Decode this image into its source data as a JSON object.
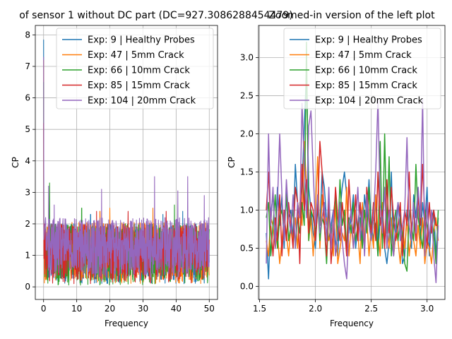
{
  "colors": {
    "series": [
      "#1f77b4",
      "#ff7f0e",
      "#2ca02c",
      "#d62728",
      "#9467bd"
    ],
    "grid": "#b0b0b0",
    "axes": "#000000",
    "background": "#ffffff"
  },
  "legend_labels": [
    "Exp: 9 | Healthy Probes",
    "Exp: 47 | 5mm Crack",
    "Exp: 66 | 10mm Crack",
    "Exp: 85 | 15mm Crack",
    "Exp: 104 | 20mm Crack"
  ],
  "chart_data": [
    {
      "type": "line",
      "title": "of sensor 1 without DC part (DC=927.3086288454479)",
      "xlabel": "Frequency",
      "ylabel": "CP",
      "xlim": [
        -2.5,
        52.5
      ],
      "ylim": [
        -0.4,
        8.3
      ],
      "xticks": [
        0,
        10,
        20,
        30,
        40,
        50
      ],
      "xtick_labels": [
        "0",
        "10",
        "20",
        "30",
        "40",
        "50"
      ],
      "yticks": [
        0,
        1,
        2,
        3,
        4,
        5,
        6,
        7,
        8
      ],
      "ytick_labels": [
        "0",
        "1",
        "2",
        "3",
        "4",
        "5",
        "6",
        "7",
        "8"
      ],
      "grid": true,
      "legend_position": "top-right",
      "x_range": [
        0,
        50
      ],
      "series": [
        {
          "name": "Exp: 9 | Healthy Probes",
          "head": [
            [
              0,
              7.85
            ],
            [
              0.05,
              3.5
            ],
            [
              0.1,
              1.2
            ]
          ],
          "band": [
            0.1,
            2.0
          ],
          "peaks": [
            [
              14.2,
              2.3
            ],
            [
              36.0,
              2.3
            ],
            [
              42.0,
              2.4
            ]
          ]
        },
        {
          "name": "Exp: 47 | 5mm Crack",
          "head": [
            [
              0,
              7.2
            ],
            [
              0.05,
              3.0
            ],
            [
              0.1,
              1.0
            ]
          ],
          "band": [
            0.1,
            2.05
          ],
          "peaks": [
            [
              17.0,
              2.4
            ],
            [
              20.0,
              2.5
            ],
            [
              33.0,
              2.5
            ]
          ]
        },
        {
          "name": "Exp: 66 | 10mm Crack",
          "head": [
            [
              0,
              6.5
            ],
            [
              0.05,
              2.5
            ],
            [
              0.1,
              1.0
            ]
          ],
          "band": [
            0.05,
            2.0
          ],
          "peaks": [
            [
              1.8,
              3.3
            ],
            [
              11.5,
              2.5
            ],
            [
              39.5,
              2.6
            ]
          ]
        },
        {
          "name": "Exp: 85 | 15mm Crack",
          "head": [
            [
              0,
              5.2
            ],
            [
              0.05,
              2.0
            ],
            [
              0.1,
              0.9
            ]
          ],
          "band": [
            0.1,
            2.0
          ],
          "peaks": [
            [
              16.0,
              2.4
            ],
            [
              25.5,
              2.4
            ],
            [
              37.0,
              2.4
            ]
          ]
        },
        {
          "name": "Exp: 104 | 20mm Crack",
          "head": [
            [
              0,
              7.3
            ],
            [
              0.05,
              4.2
            ],
            [
              0.1,
              1.5
            ],
            [
              0.6,
              2.2
            ]
          ],
          "band": [
            0.3,
            2.2
          ],
          "peaks": [
            [
              1.5,
              3.2
            ],
            [
              3.2,
              2.6
            ],
            [
              17.5,
              3.1
            ],
            [
              33.5,
              3.5
            ],
            [
              40.5,
              3.05
            ],
            [
              43.5,
              3.5
            ],
            [
              48.5,
              2.9
            ]
          ]
        }
      ]
    },
    {
      "type": "line",
      "title": "Zoomed-in version of the left plot",
      "xlabel": "Frequency",
      "ylabel": "CP",
      "xlim": [
        1.49,
        3.16
      ],
      "ylim": [
        -0.17,
        3.42
      ],
      "xticks": [
        1.5,
        2.0,
        2.5,
        3.0
      ],
      "xtick_labels": [
        "1.5",
        "2.0",
        "2.5",
        "3.0"
      ],
      "yticks": [
        0.0,
        0.5,
        1.0,
        1.5,
        2.0,
        2.5,
        3.0
      ],
      "ytick_labels": [
        "0.0",
        "0.5",
        "1.0",
        "1.5",
        "2.0",
        "2.5",
        "3.0"
      ],
      "grid": true,
      "legend_position": "top-right",
      "x": [
        1.56,
        1.58,
        1.6,
        1.62,
        1.64,
        1.66,
        1.68,
        1.7,
        1.72,
        1.74,
        1.76,
        1.78,
        1.8,
        1.82,
        1.84,
        1.86,
        1.88,
        1.9,
        1.92,
        1.94,
        1.96,
        1.98,
        2.0,
        2.02,
        2.04,
        2.06,
        2.08,
        2.1,
        2.12,
        2.14,
        2.16,
        2.18,
        2.2,
        2.22,
        2.24,
        2.26,
        2.28,
        2.3,
        2.32,
        2.34,
        2.36,
        2.38,
        2.4,
        2.42,
        2.44,
        2.46,
        2.48,
        2.5,
        2.52,
        2.54,
        2.56,
        2.58,
        2.6,
        2.62,
        2.64,
        2.66,
        2.68,
        2.7,
        2.72,
        2.74,
        2.76,
        2.78,
        2.8,
        2.82,
        2.84,
        2.86,
        2.88,
        2.9,
        2.92,
        2.94,
        2.96,
        2.98,
        3.0,
        3.02,
        3.04,
        3.06,
        3.08,
        3.1
      ],
      "series": [
        {
          "name": "Exp: 9 | Healthy Probes",
          "values": [
            0.7,
            0.1,
            0.95,
            1.2,
            0.6,
            1.3,
            0.8,
            1.2,
            0.5,
            1.3,
            0.9,
            1.0,
            0.6,
            1.6,
            1.1,
            0.9,
            1.3,
            2.1,
            2.8,
            1.3,
            1.0,
            0.7,
            0.5,
            1.1,
            0.8,
            1.5,
            1.3,
            0.85,
            0.6,
            0.8,
            1.0,
            0.6,
            0.4,
            1.0,
            1.3,
            1.5,
            1.2,
            0.7,
            0.9,
            1.2,
            0.5,
            0.8,
            1.1,
            0.6,
            1.2,
            0.9,
            1.4,
            0.8,
            0.6,
            1.2,
            0.4,
            0.9,
            0.9,
            0.5,
            0.3,
            0.6,
            1.5,
            0.4,
            0.7,
            1.1,
            0.9,
            0.3,
            0.4,
            1.0,
            0.8,
            0.5,
            1.2,
            0.9,
            1.3,
            0.6,
            1.1,
            0.8,
            1.3,
            0.4,
            0.9,
            1.0,
            0.4,
            0.9
          ]
        },
        {
          "name": "Exp: 47 | 5mm Crack",
          "values": [
            0.6,
            0.4,
            0.9,
            0.8,
            0.5,
            0.7,
            0.3,
            0.6,
            0.9,
            0.7,
            0.4,
            0.8,
            0.6,
            0.9,
            0.5,
            1.1,
            0.8,
            1.9,
            1.3,
            0.6,
            0.9,
            0.4,
            1.0,
            1.7,
            0.5,
            1.2,
            0.8,
            0.9,
            0.6,
            0.7,
            0.4,
            1.1,
            0.3,
            0.5,
            0.7,
            0.6,
            1.3,
            0.4,
            0.8,
            0.5,
            1.0,
            0.7,
            0.3,
            1.1,
            0.6,
            0.9,
            0.4,
            0.8,
            0.5,
            1.2,
            0.7,
            0.4,
            1.1,
            0.6,
            0.8,
            0.5,
            0.9,
            0.4,
            0.7,
            0.6,
            0.3,
            0.8,
            0.5,
            0.9,
            0.4,
            0.7,
            0.6,
            0.4,
            0.8,
            0.5,
            0.9,
            0.3,
            0.6,
            0.5,
            0.3,
            0.7,
            0.9,
            0.6
          ]
        },
        {
          "name": "Exp: 66 | 10mm Crack",
          "values": [
            0.9,
            1.1,
            0.4,
            0.8,
            1.2,
            0.5,
            0.9,
            1.0,
            0.7,
            1.2,
            0.6,
            0.8,
            1.0,
            0.5,
            0.9,
            0.7,
            1.1,
            0.8,
            3.2,
            0.6,
            1.0,
            0.9,
            0.7,
            1.1,
            0.6,
            0.9,
            0.8,
            0.3,
            1.0,
            0.7,
            0.9,
            1.2,
            0.6,
            1.4,
            0.8,
            1.0,
            0.5,
            0.9,
            0.7,
            1.1,
            0.6,
            0.8,
            0.9,
            0.5,
            1.0,
            0.7,
            1.3,
            0.6,
            0.9,
            0.8,
            0.4,
            1.9,
            0.5,
            2.0,
            0.7,
            1.7,
            0.4,
            0.8,
            1.0,
            0.6,
            0.9,
            0.7,
            0.3,
            0.2,
            1.0,
            0.8,
            0.6,
            1.6,
            0.9,
            0.7,
            0.5,
            1.0,
            0.8,
            0.6,
            0.9,
            0.7,
            0.3,
            1.0
          ]
        },
        {
          "name": "Exp: 85 | 15mm Crack",
          "values": [
            1.0,
            1.5,
            0.8,
            0.4,
            0.9,
            0.6,
            1.2,
            0.4,
            1.0,
            0.6,
            1.1,
            0.8,
            0.5,
            1.3,
            1.1,
            0.3,
            1.6,
            1.0,
            1.4,
            0.7,
            1.1,
            1.0,
            0.6,
            1.0,
            1.9,
            1.5,
            0.8,
            0.4,
            1.2,
            0.3,
            0.7,
            1.3,
            0.9,
            0.6,
            1.1,
            0.8,
            0.4,
            1.4,
            0.9,
            0.7,
            1.2,
            0.6,
            1.1,
            0.8,
            0.5,
            1.3,
            0.9,
            0.7,
            1.1,
            0.6,
            1.5,
            0.8,
            1.0,
            0.5,
            1.4,
            0.7,
            1.3,
            0.9,
            0.6,
            0.8,
            1.1,
            0.4,
            1.0,
            0.8,
            1.5,
            0.7,
            1.0,
            0.6,
            1.2,
            0.8,
            1.6,
            0.9,
            0.5,
            1.1,
            0.7,
            1.0,
            0.8,
            0.8
          ]
        },
        {
          "name": "Exp: 104 | 20mm Crack",
          "values": [
            0.3,
            2.0,
            0.8,
            1.3,
            0.5,
            1.1,
            2.0,
            1.2,
            0.6,
            1.4,
            0.9,
            0.7,
            1.2,
            0.5,
            1.1,
            0.9,
            2.4,
            1.6,
            0.9,
            2.1,
            2.3,
            1.5,
            0.8,
            1.2,
            0.7,
            0.9,
            1.1,
            0.6,
            1.3,
            0.5,
            1.0,
            0.4,
            0.7,
            1.1,
            0.6,
            0.3,
            0.1,
            0.8,
            1.0,
            0.5,
            0.8,
            1.3,
            0.6,
            1.0,
            0.4,
            1.2,
            0.8,
            0.6,
            0.9,
            1.5,
            2.45,
            1.1,
            0.7,
            1.3,
            0.5,
            1.0,
            0.7,
            0.4,
            0.9,
            1.1,
            0.6,
            0.8,
            1.0,
            1.95,
            0.8,
            0.6,
            1.1,
            0.7,
            1.3,
            0.9,
            2.45,
            0.4,
            1.1,
            0.6,
            1.0,
            0.4,
            0.05,
            0.8
          ]
        }
      ]
    }
  ]
}
